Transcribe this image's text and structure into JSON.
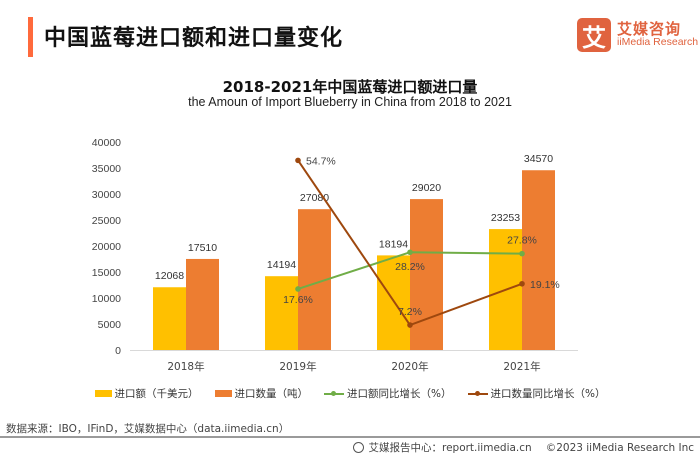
{
  "header": {
    "title": "中国蓝莓进口额和进口量变化",
    "logo_mark": "艾",
    "logo_cn": "艾媒咨询",
    "logo_en": "iiMedia Research"
  },
  "colors": {
    "accent": "#ff6a3c",
    "import_value": "#ffc000",
    "import_volume": "#ed7d31",
    "value_growth": "#70ad47",
    "volume_growth": "#9e480e"
  },
  "chart_data": {
    "type": "bar",
    "title": "2018-2021年中国蓝莓进口额进口量",
    "subtitle": "the Amoun of Import Blueberry in China from 2018 to 2021",
    "categories": [
      "2018年",
      "2019年",
      "2020年",
      "2021年"
    ],
    "ylim": [
      0,
      40000
    ],
    "yticks": [
      "0",
      "5000",
      "10000",
      "15000",
      "20000",
      "25000",
      "30000",
      "35000",
      "40000"
    ],
    "y2lim": [
      0,
      60
    ],
    "series": [
      {
        "name": "进口额（千美元）",
        "type": "bar",
        "values": [
          12068,
          14194,
          18194,
          23253
        ],
        "labels": [
          "12068",
          "14194",
          "18194",
          "23253"
        ]
      },
      {
        "name": "进口数量（吨）",
        "type": "bar",
        "values": [
          17510,
          27080,
          29020,
          34570
        ],
        "labels": [
          "17510",
          "27080",
          "29020",
          "34570"
        ]
      },
      {
        "name": "进口额同比增长（%）",
        "type": "line",
        "axis": "secondary",
        "values": [
          null,
          17.6,
          28.2,
          27.8
        ],
        "labels": [
          "",
          "17.6%",
          "28.2%",
          "27.8%"
        ]
      },
      {
        "name": "进口数量同比增长（%）",
        "type": "line",
        "axis": "secondary",
        "values": [
          null,
          54.7,
          7.2,
          19.1
        ],
        "labels": [
          "",
          "54.7%",
          "7.2%",
          "19.1%"
        ]
      }
    ],
    "legend_position": "bottom",
    "grid": false
  },
  "footer": {
    "source": "数据来源：IBO，IFinD，艾媒数据中心（data.iimedia.cn）",
    "report": "艾媒报告中心：report.iimedia.cn",
    "copyright": "©2023  iiMedia Research  Inc"
  }
}
